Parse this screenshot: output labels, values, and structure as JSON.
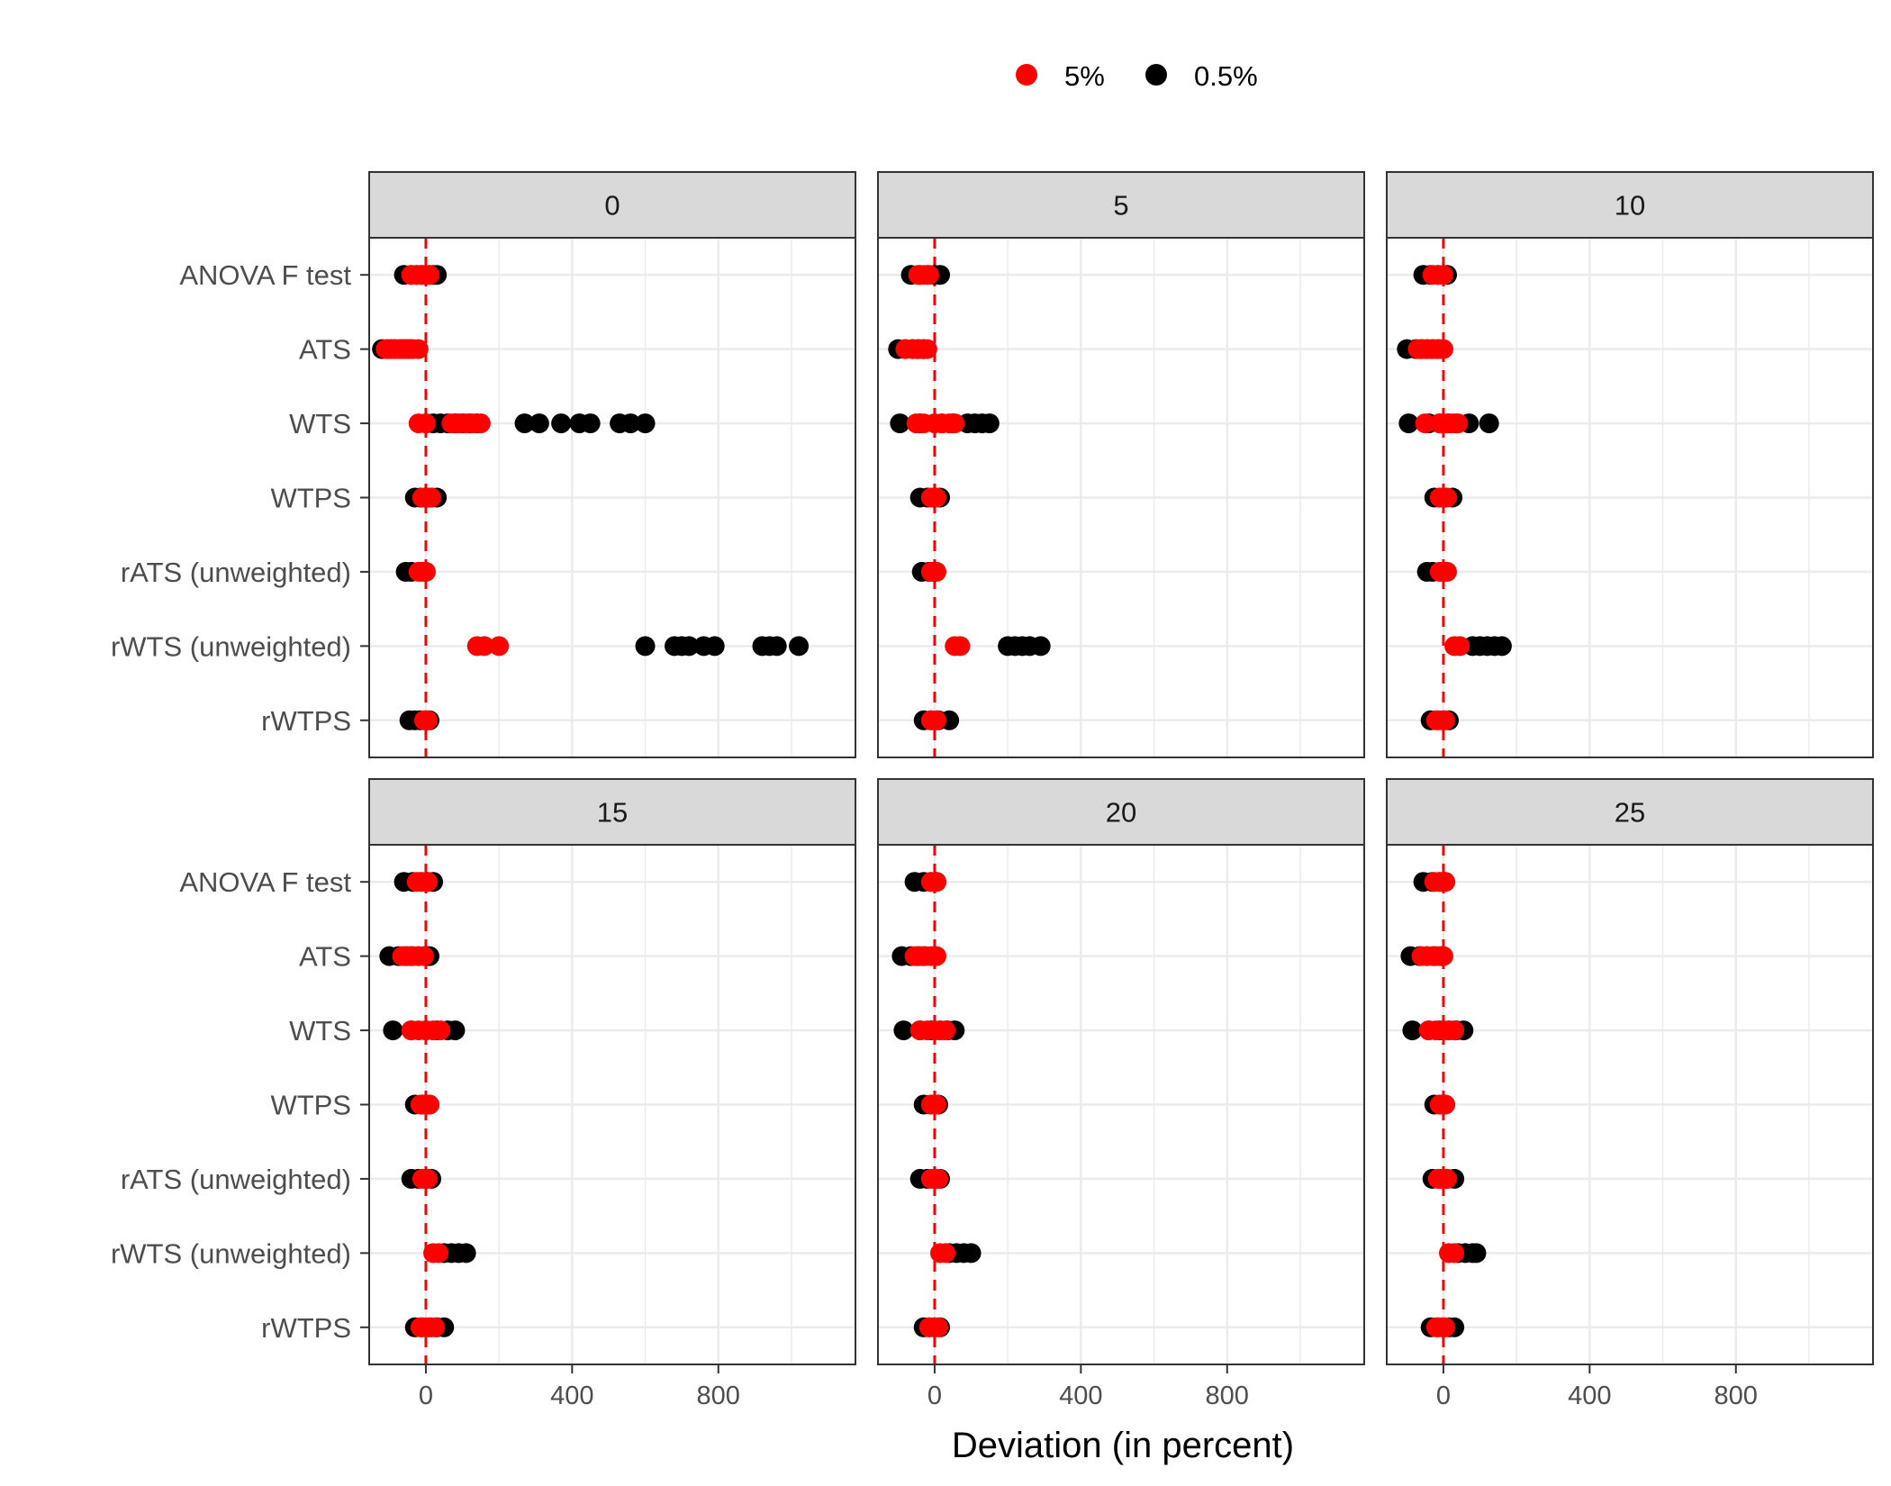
{
  "chart_data": {
    "type": "scatter",
    "facet_variable_values": [
      "0",
      "5",
      "10",
      "15",
      "20",
      "25"
    ],
    "xlabel": "Deviation (in percent)",
    "ylabel": "",
    "xlim": [
      -155,
      1175
    ],
    "xticks": [
      0,
      400,
      800
    ],
    "xtick_labels": [
      "0",
      "400",
      "800"
    ],
    "reference_line": {
      "x": 0,
      "style": "dashed",
      "color": "#FF0000"
    },
    "grid": true,
    "legend_position": "top",
    "colors": {
      "5%": "#FF0000",
      "0.5%": "#000000",
      "strip": "#D9D9D9",
      "grid": "#EBEBEB",
      "panel_border": "#333333"
    },
    "categories": [
      "ANOVA F test",
      "ATS",
      "WTS",
      "WTPS",
      "rATS (unweighted)",
      "rWTS (unweighted)",
      "rWTPS"
    ],
    "series": [
      {
        "name": "5%",
        "color": "#FF0000"
      },
      {
        "name": "0.5%",
        "color": "#000000"
      }
    ],
    "panels": [
      {
        "title": "0",
        "points": {
          "0.5%": {
            "ANOVA F test": [
              -60,
              -40,
              -25,
              -10,
              0,
              10,
              20,
              30
            ],
            "ATS": [
              -120,
              -105,
              -95,
              -85,
              -70,
              -60,
              -50,
              -40
            ],
            "WTS": [
              0,
              20,
              40,
              60,
              80,
              100,
              120,
              140,
              270,
              310,
              370,
              420,
              450,
              530,
              560,
              600
            ],
            "WTPS": [
              -30,
              -15,
              0,
              15,
              30
            ],
            "rATS (unweighted)": [
              -55,
              -40
            ],
            "rWTS (unweighted)": [
              600,
              680,
              700,
              720,
              760,
              790,
              920,
              940,
              960,
              1020
            ],
            "rWTPS": [
              -45,
              -30,
              -15,
              0,
              10
            ]
          },
          "5%": {
            "ANOVA F test": [
              -40,
              -25,
              -15,
              0,
              10
            ],
            "ATS": [
              -110,
              -95,
              -85,
              -75,
              -65,
              -55,
              -45,
              -35,
              -20
            ],
            "WTS": [
              -20,
              0,
              70,
              90,
              110,
              130,
              150
            ],
            "WTPS": [
              -10,
              5,
              15
            ],
            "rATS (unweighted)": [
              -20,
              -10,
              0
            ],
            "rWTS (unweighted)": [
              140,
              160,
              200
            ],
            "rWTPS": [
              -5,
              5
            ]
          }
        }
      },
      {
        "title": "5",
        "points": {
          "0.5%": {
            "ANOVA F test": [
              -65,
              -40,
              -20,
              0,
              15
            ],
            "ATS": [
              -100,
              -80,
              -60,
              -45,
              -30
            ],
            "WTS": [
              -95,
              -40,
              20,
              50,
              90,
              110,
              130,
              150
            ],
            "WTPS": [
              -40,
              -20,
              0,
              15
            ],
            "rATS (unweighted)": [
              -35,
              -15,
              0
            ],
            "rWTS (unweighted)": [
              200,
              220,
              240,
              260,
              290
            ],
            "rWTPS": [
              -30,
              -10,
              10,
              40
            ]
          },
          "5%": {
            "ANOVA F test": [
              -45,
              -30,
              -15
            ],
            "ATS": [
              -80,
              -60,
              -40,
              -20
            ],
            "WTS": [
              -50,
              -30,
              0,
              20,
              40,
              55
            ],
            "WTPS": [
              -10,
              5
            ],
            "rATS (unweighted)": [
              -10,
              5
            ],
            "rWTS (unweighted)": [
              55,
              70
            ],
            "rWTPS": [
              -10,
              5
            ]
          }
        }
      },
      {
        "title": "10",
        "points": {
          "0.5%": {
            "ANOVA F test": [
              -55,
              -35,
              -15,
              0,
              10
            ],
            "ATS": [
              -100,
              -75,
              -60,
              -45,
              -30,
              -15
            ],
            "WTS": [
              -95,
              -40,
              -10,
              15,
              35,
              70,
              125
            ],
            "WTPS": [
              -25,
              -10,
              5,
              25
            ],
            "rATS (unweighted)": [
              -45,
              -30
            ],
            "rWTS (unweighted)": [
              80,
              100,
              120,
              140,
              160
            ],
            "rWTPS": [
              -35,
              -15,
              0,
              15
            ]
          },
          "5%": {
            "ANOVA F test": [
              -30,
              -15,
              0
            ],
            "ATS": [
              -70,
              -55,
              -40,
              -25,
              -10,
              0
            ],
            "WTS": [
              -50,
              -10,
              10,
              25,
              40
            ],
            "WTPS": [
              -10,
              0,
              10
            ],
            "rATS (unweighted)": [
              -10,
              0,
              10
            ],
            "rWTS (unweighted)": [
              30,
              45
            ],
            "rWTPS": [
              -20,
              -5,
              5
            ]
          }
        }
      },
      {
        "title": "15",
        "points": {
          "0.5%": {
            "ANOVA F test": [
              -60,
              -35,
              -15,
              5,
              20
            ],
            "ATS": [
              -100,
              -75,
              -55,
              -40,
              -20,
              0,
              10
            ],
            "WTS": [
              -90,
              -40,
              0,
              30,
              60,
              80
            ],
            "WTPS": [
              -30,
              -10,
              10
            ],
            "rATS (unweighted)": [
              -40,
              -20,
              0,
              15
            ],
            "rWTS (unweighted)": [
              50,
              70,
              90,
              110
            ],
            "rWTPS": [
              -30,
              -10,
              10,
              30,
              50
            ]
          },
          "5%": {
            "ANOVA F test": [
              -25,
              -10,
              5
            ],
            "ATS": [
              -65,
              -50,
              -35,
              -20,
              -5
            ],
            "WTS": [
              -40,
              -20,
              0,
              20,
              40
            ],
            "WTPS": [
              -15,
              0,
              10
            ],
            "rATS (unweighted)": [
              -10,
              5
            ],
            "rWTS (unweighted)": [
              20,
              35
            ],
            "rWTPS": [
              -15,
              0,
              15,
              25
            ]
          }
        }
      },
      {
        "title": "20",
        "points": {
          "0.5%": {
            "ANOVA F test": [
              -55,
              -30,
              -10,
              5
            ],
            "ATS": [
              -90,
              -65,
              -45,
              -30
            ],
            "WTS": [
              -85,
              -40,
              -10,
              15,
              35,
              55
            ],
            "WTPS": [
              -30,
              -10,
              10
            ],
            "rATS (unweighted)": [
              -40,
              -20,
              0,
              15
            ],
            "rWTS (unweighted)": [
              40,
              60,
              80,
              100
            ],
            "rWTPS": [
              -30,
              -15,
              0,
              15
            ]
          },
          "5%": {
            "ANOVA F test": [
              -10,
              5
            ],
            "ATS": [
              -55,
              -40,
              -25,
              -10,
              5
            ],
            "WTS": [
              -40,
              -20,
              0,
              15,
              30
            ],
            "WTPS": [
              -10,
              5
            ],
            "rATS (unweighted)": [
              -10,
              0,
              10
            ],
            "rWTS (unweighted)": [
              15,
              30
            ],
            "rWTPS": [
              -15,
              0,
              10
            ]
          }
        }
      },
      {
        "title": "25",
        "points": {
          "0.5%": {
            "ANOVA F test": [
              -55,
              -30,
              -10,
              5
            ],
            "ATS": [
              -90,
              -65,
              -45,
              -25,
              -5
            ],
            "WTS": [
              -85,
              -40,
              -10,
              15,
              35,
              55
            ],
            "WTPS": [
              -25,
              -10,
              5
            ],
            "rATS (unweighted)": [
              -30,
              -10,
              10,
              30
            ],
            "rWTS (unweighted)": [
              40,
              60,
              80,
              90
            ],
            "rWTPS": [
              -35,
              -15,
              0,
              15,
              30
            ]
          },
          "5%": {
            "ANOVA F test": [
              -25,
              -10,
              5
            ],
            "ATS": [
              -60,
              -45,
              -30,
              -15,
              0
            ],
            "WTS": [
              -40,
              -20,
              0,
              15,
              30
            ],
            "WTPS": [
              -10,
              5
            ],
            "rATS (unweighted)": [
              -15,
              0,
              10
            ],
            "rWTS (unweighted)": [
              15,
              30
            ],
            "rWTPS": [
              -20,
              -5,
              5
            ]
          }
        }
      }
    ]
  }
}
